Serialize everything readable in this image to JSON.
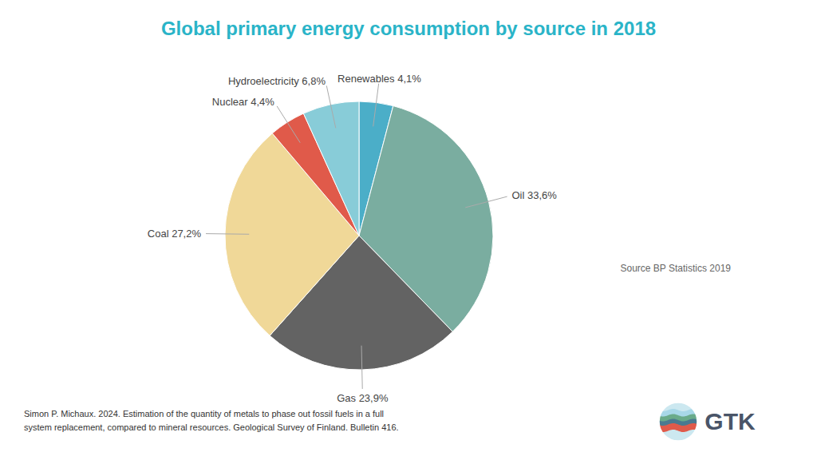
{
  "chart_data": {
    "type": "pie",
    "title": "Global primary energy consumption by source in 2018",
    "categories": [
      "Renewables 4,1%",
      "Oil 33,6%",
      "Gas 23,9%",
      "Coal 27,2%",
      "Nuclear 4,4%",
      "Hydroelectricity 6,8%"
    ],
    "values": [
      4.1,
      33.6,
      23.9,
      27.2,
      4.4,
      6.8
    ],
    "colors": [
      "#4baec8",
      "#7aada0",
      "#636363",
      "#f0d898",
      "#e05a4a",
      "#88ccd8"
    ],
    "annotations": [
      "Source BP Statistics 2019",
      "Simon P. Michaux. 2024. Estimation of the quantity of metals to phase out fossil fuels in a full\nsystem replacement, compared to mineral resources. Geological Survey of Finland. Bulletin 416.",
      "GTK"
    ]
  }
}
